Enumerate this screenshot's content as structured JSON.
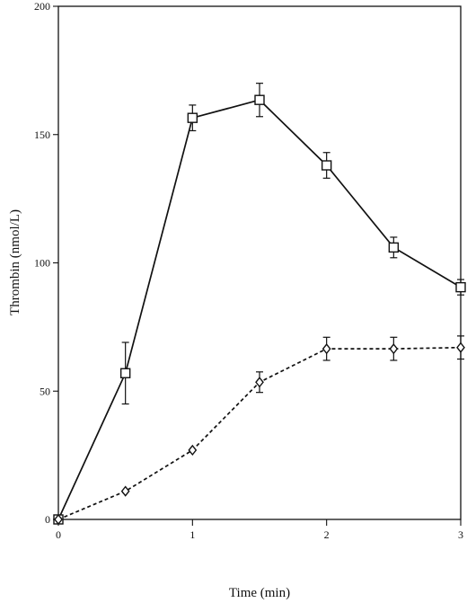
{
  "chart_data": {
    "type": "line",
    "title": "",
    "xlabel": "Time (min)",
    "ylabel": "Thrombin (nmol/L)",
    "xlim": [
      0,
      3
    ],
    "ylim": [
      0,
      200
    ],
    "x_ticks": [
      0,
      1,
      2,
      3
    ],
    "y_ticks": [
      0,
      50,
      100,
      150,
      200
    ],
    "grid": false,
    "legend": "none",
    "series": [
      {
        "marker": "square",
        "line_style": "solid",
        "color": "#111111",
        "x": [
          0,
          0.5,
          1,
          1.5,
          2,
          2.5,
          3
        ],
        "y": [
          0,
          57,
          156.5,
          163.5,
          138,
          106,
          90.5
        ],
        "error": [
          0,
          12,
          5,
          6.5,
          5,
          4,
          3
        ]
      },
      {
        "marker": "diamond",
        "line_style": "dashed",
        "color": "#111111",
        "x": [
          0,
          0.5,
          1,
          1.5,
          2,
          2.5,
          3
        ],
        "y": [
          0,
          11,
          27,
          53.5,
          66.5,
          66.5,
          67
        ],
        "error": [
          0,
          0,
          0,
          4,
          4.5,
          4.5,
          4.5
        ]
      }
    ]
  }
}
